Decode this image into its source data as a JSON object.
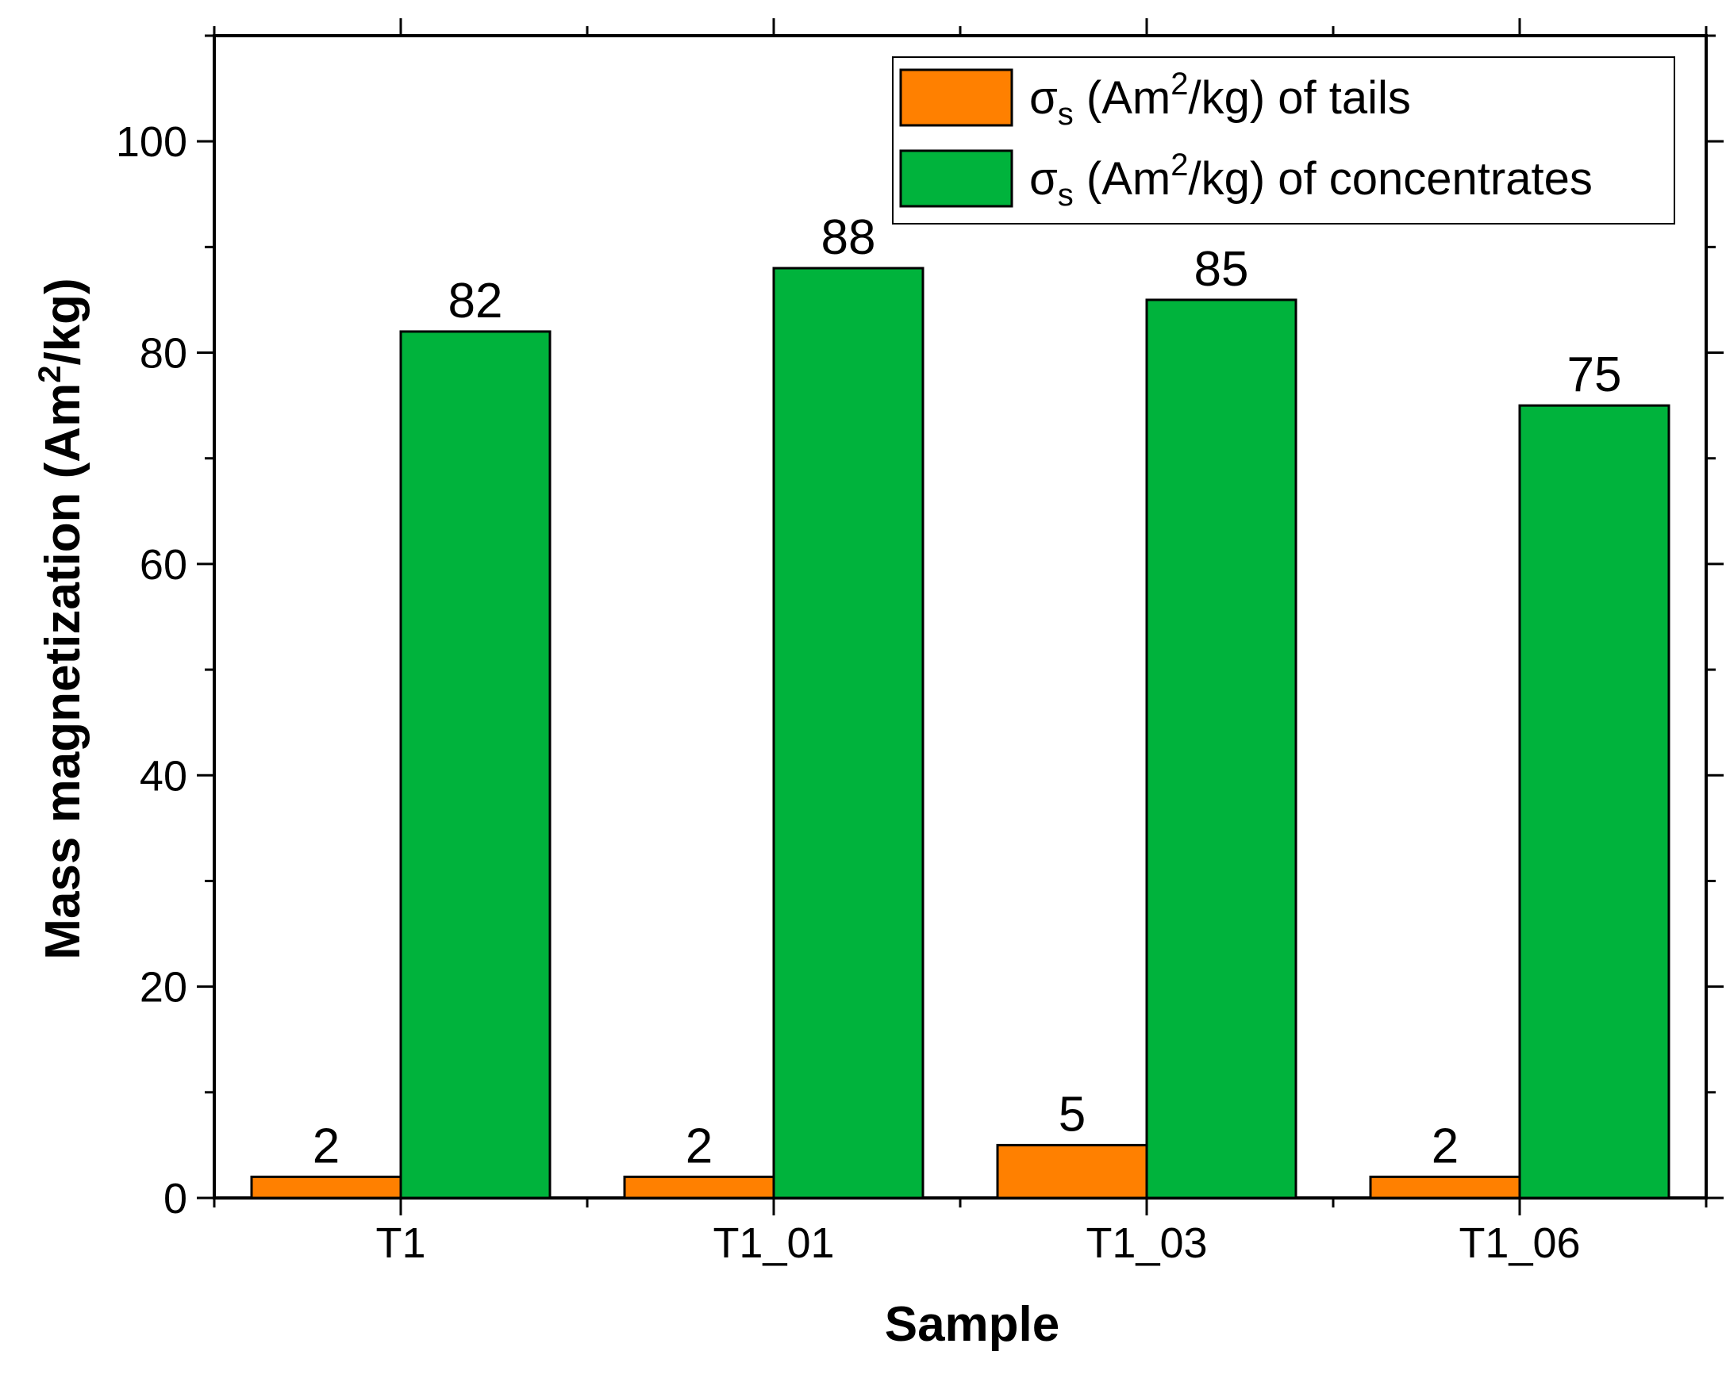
{
  "chart_data": {
    "type": "bar",
    "title": "",
    "xlabel": "Sample",
    "ylabel": {
      "main": "Mass magnetization (Am",
      "sup": "2",
      "tail": "/kg)"
    },
    "categories": [
      "T1",
      "T1_01",
      "T1_03",
      "T1_06"
    ],
    "ylim": [
      0,
      110
    ],
    "yticks": [
      0,
      20,
      40,
      60,
      80,
      100
    ],
    "y_minor_step": 10,
    "legend_position": "top-right",
    "series": [
      {
        "name": "tails",
        "color": "#FF8000",
        "values": [
          2,
          2,
          5,
          2
        ],
        "legend": {
          "sym": "σ",
          "sub": "s",
          "pre": " (Am",
          "sup": "2",
          "post": "/kg) of tails"
        }
      },
      {
        "name": "concentrates",
        "color": "#00B33C",
        "values": [
          82,
          88,
          85,
          75
        ],
        "legend": {
          "sym": "σ",
          "sub": "s",
          "pre": " (Am",
          "sup": "2",
          "post": "/kg) of concentrates"
        }
      }
    ]
  }
}
